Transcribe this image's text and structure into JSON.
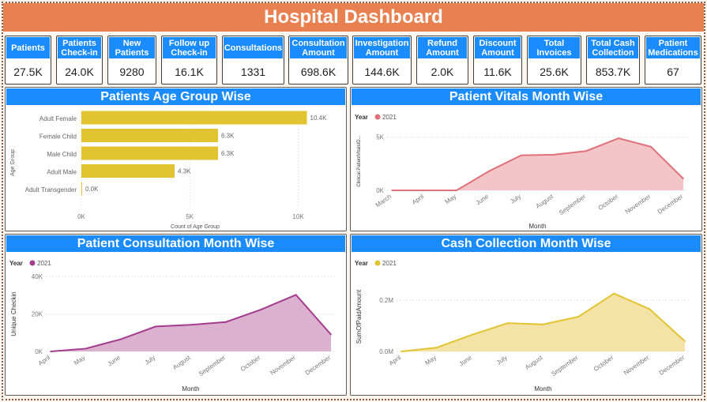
{
  "title": "Hospital Dashboard",
  "kpis": [
    {
      "label": "Patients",
      "value": "27.5K"
    },
    {
      "label": "Patients Check-in",
      "value": "24.0K"
    },
    {
      "label": "New Patients",
      "value": "9280"
    },
    {
      "label": "Follow up Check-in",
      "value": "16.1K"
    },
    {
      "label": "Consultations",
      "value": "1331"
    },
    {
      "label": "Consultation Amount",
      "value": "698.6K"
    },
    {
      "label": "Investigation Amount",
      "value": "144.6K"
    },
    {
      "label": "Refund Amount",
      "value": "2.0K"
    },
    {
      "label": "Discount Amount",
      "value": "11.6K"
    },
    {
      "label": "Total Invoices",
      "value": "25.6K"
    },
    {
      "label": "Total Cash Collection",
      "value": "853.7K"
    },
    {
      "label": "Patient Medications",
      "value": "67"
    }
  ],
  "panels": {
    "age": "Patients Age Group Wise",
    "vitals": "Patient Vitals Month Wise",
    "consult": "Patient Consultation Month Wise",
    "cash": "Cash Collection Month Wise"
  },
  "chart_data": [
    {
      "type": "bar",
      "orientation": "horizontal",
      "title": "Patients Age Group Wise",
      "categories": [
        "Adult Female",
        "Female Child",
        "Male Child",
        "Adult Male",
        "Adult Transgender"
      ],
      "values": [
        10400,
        6300,
        6300,
        4300,
        0
      ],
      "data_labels": [
        "10.4K",
        "6.3K",
        "6.3K",
        "4.3K",
        "0.0K"
      ],
      "xlabel": "Count of Age Group",
      "ylabel": "Age Group",
      "xlim": [
        0,
        11000
      ],
      "xticks": [
        0,
        5000,
        10000
      ],
      "xtick_labels": [
        "0K",
        "5K",
        "10K"
      ],
      "color": "#e2c332",
      "grid": true
    },
    {
      "type": "area",
      "title": "Patient Vitals Month Wise",
      "legend_title": "Year",
      "series": [
        {
          "name": "2021",
          "color": "#e0707a",
          "fill": "#f3c4c8",
          "values": [
            0,
            0,
            0,
            1800,
            3300,
            3350,
            3700,
            4900,
            4100,
            1100
          ]
        }
      ],
      "x": [
        "March",
        "April",
        "May",
        "June",
        "July",
        "August",
        "September",
        "October",
        "November",
        "December"
      ],
      "xlabel": "Month",
      "ylabel": "Clinical.PatientVitalsID...",
      "ylim": [
        0,
        5500
      ],
      "yticks": [
        0,
        5000
      ],
      "ytick_labels": [
        "0K",
        "5K"
      ]
    },
    {
      "type": "area",
      "title": "Patient Consultation Month Wise",
      "legend_title": "Year",
      "series": [
        {
          "name": "2021",
          "color": "#a33c8e",
          "fill": "#dcb0cf",
          "values": [
            0,
            1500,
            6500,
            13300,
            14200,
            15700,
            22300,
            30200,
            9000
          ]
        }
      ],
      "x": [
        "April",
        "May",
        "June",
        "July",
        "August",
        "September",
        "October",
        "November",
        "December"
      ],
      "xlabel": "Month",
      "ylabel": "Unique Checkin",
      "ylim": [
        0,
        40000
      ],
      "yticks": [
        0,
        20000,
        40000
      ],
      "ytick_labels": [
        "0K",
        "20K",
        "40K"
      ]
    },
    {
      "type": "area",
      "title": "Cash Collection Month Wise",
      "legend_title": "Year",
      "series": [
        {
          "name": "2021",
          "color": "#e2c332",
          "fill": "#f3e3a6",
          "values": [
            0,
            15000,
            65000,
            110000,
            105000,
            135000,
            225000,
            165000,
            40000
          ]
        }
      ],
      "x": [
        "April",
        "May",
        "June",
        "July",
        "August",
        "September",
        "October",
        "November",
        "December"
      ],
      "xlabel": "Month",
      "ylabel": "SumOfPaidAmount",
      "ylim": [
        0,
        270000
      ],
      "yticks": [
        0,
        200000
      ],
      "ytick_labels": [
        "0.0M",
        "0.2M"
      ]
    }
  ]
}
